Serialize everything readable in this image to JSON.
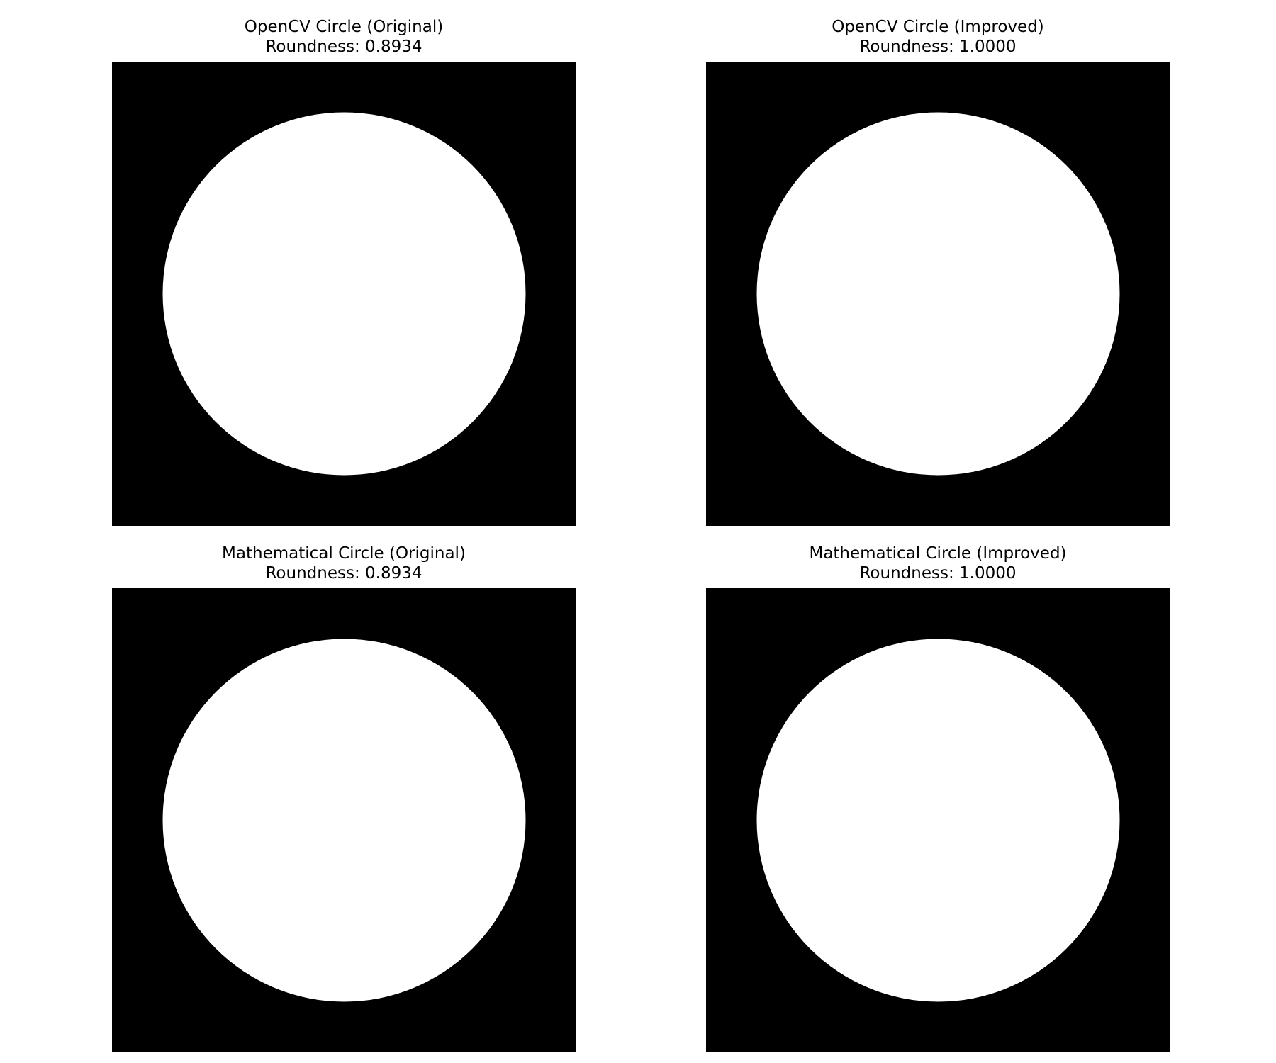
{
  "figure": {
    "panels": [
      {
        "title": "OpenCV Circle (Original)",
        "subtitle": "Roundness: 0.8934",
        "shape": "white-circle-on-black"
      },
      {
        "title": "OpenCV Circle (Improved)",
        "subtitle": "Roundness: 1.0000",
        "shape": "white-circle-on-black"
      },
      {
        "title": "Mathematical Circle (Original)",
        "subtitle": "Roundness: 0.8934",
        "shape": "white-circle-on-black"
      },
      {
        "title": "Mathematical Circle (Improved)",
        "subtitle": "Roundness: 1.0000",
        "shape": "white-circle-on-black"
      }
    ],
    "colors": {
      "background": "#000000",
      "circle": "#ffffff"
    }
  }
}
